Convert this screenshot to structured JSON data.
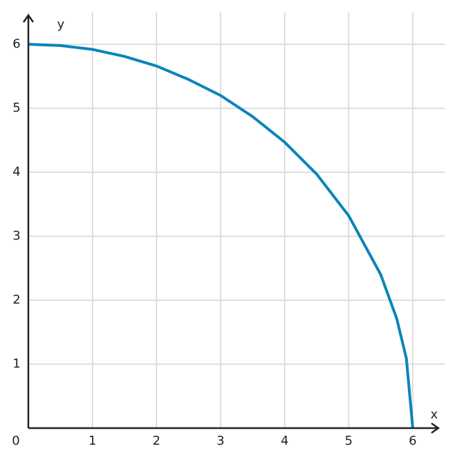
{
  "chart_data": {
    "type": "line",
    "x_label": "x",
    "y_label": "y",
    "x": [
      0,
      0.5,
      1,
      1.5,
      2,
      2.5,
      3,
      3.5,
      4,
      4.5,
      5,
      5.5,
      5.75,
      5.9,
      6
    ],
    "series": [
      {
        "color": "#0a85b8",
        "values": [
          6,
          5.98,
          5.92,
          5.81,
          5.66,
          5.45,
          5.2,
          4.87,
          4.47,
          3.97,
          3.32,
          2.4,
          1.71,
          1.09,
          0
        ]
      }
    ],
    "xlim": [
      0,
      6.5
    ],
    "ylim": [
      0,
      6.5
    ],
    "xticks": [
      0,
      1,
      2,
      3,
      4,
      5,
      6
    ],
    "yticks": [
      1,
      2,
      3,
      4,
      5,
      6
    ],
    "grid": true
  }
}
